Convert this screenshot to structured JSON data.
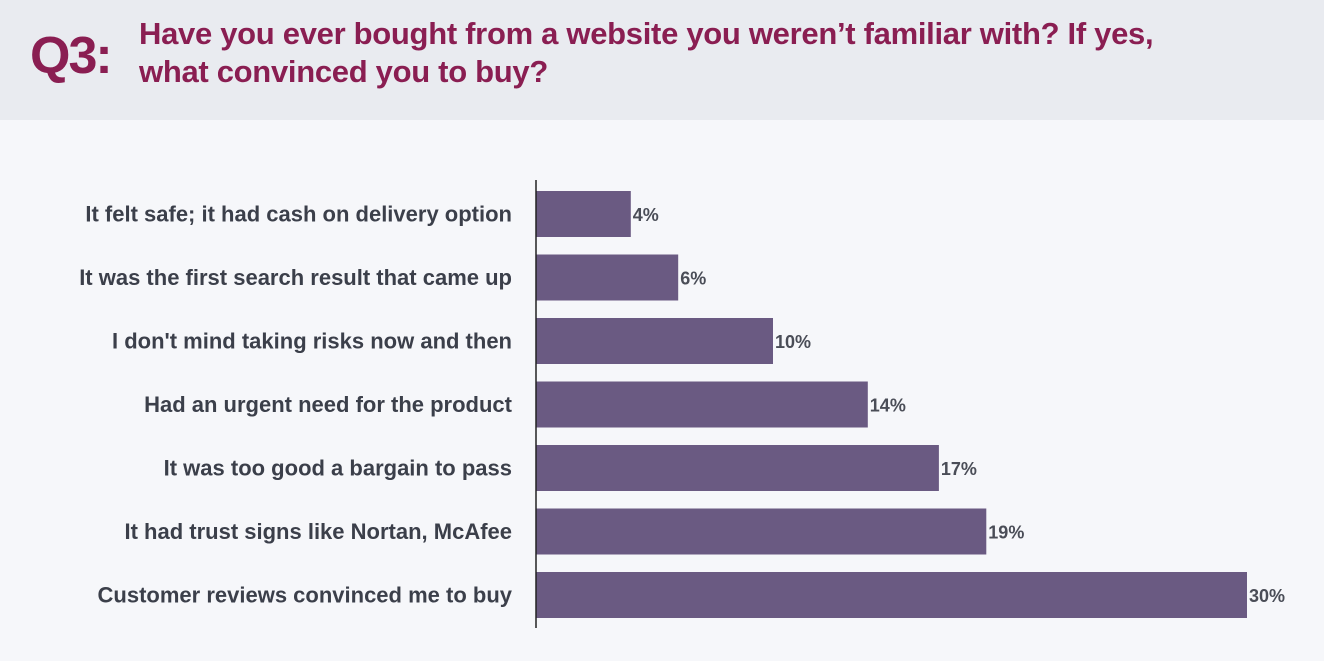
{
  "header": {
    "question_number": "Q3:",
    "question_line1": "Have you ever bought from a website you weren’t familiar with? If yes,",
    "question_line2": "what convinced you to buy?"
  },
  "colors": {
    "accent": "#8a1e52",
    "bar": "#6a5a82",
    "axis": "#222222",
    "header_bg": "#e9ebf0",
    "page_bg": "#f6f7fa"
  },
  "chart_data": {
    "type": "bar",
    "orientation": "horizontal",
    "categories": [
      "It felt safe; it had cash on delivery option",
      "It was the first search result that came up",
      "I don't mind taking risks now and then",
      "Had an urgent need for the product",
      "It was too good a bargain to pass",
      "It had trust signs like Nortan, McAfee",
      "Customer reviews convinced me to buy"
    ],
    "values": [
      4,
      6,
      10,
      14,
      17,
      19,
      30
    ],
    "value_labels": [
      "4%",
      "6%",
      "10%",
      "14%",
      "17%",
      "19%",
      "30%"
    ],
    "unit": "%",
    "xlim": [
      0,
      30
    ],
    "grid": false,
    "legend": "none"
  }
}
